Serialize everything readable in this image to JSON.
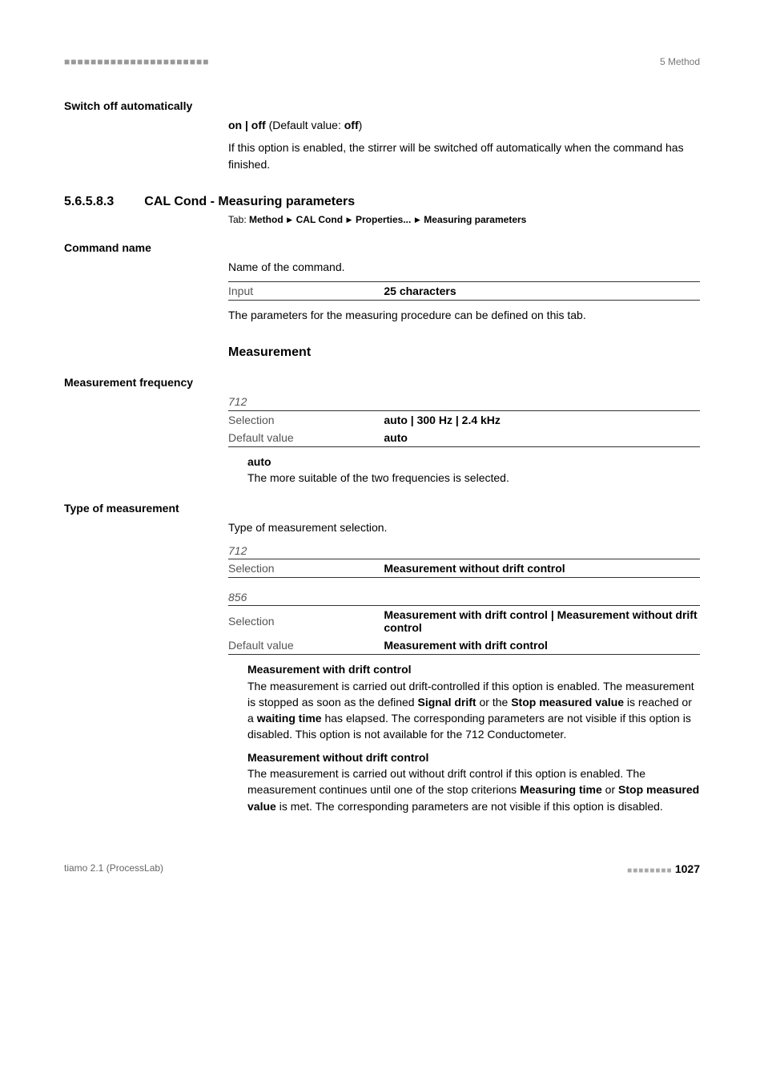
{
  "header": {
    "dashes": "■■■■■■■■■■■■■■■■■■■■■■",
    "chapter": "5 Method"
  },
  "switchOff": {
    "heading": "Switch off automatically",
    "options": "on | off",
    "defaultLabel": " (Default value: ",
    "defaultVal": "off",
    "defaultClose": ")",
    "desc": "If this option is enabled, the stirrer will be switched off automatically when the command has finished."
  },
  "section": {
    "num": "5.6.5.8.3",
    "title": "CAL Cond - Measuring parameters",
    "tabPrefix": "Tab: ",
    "tabPath": [
      "Method",
      "CAL Cond",
      "Properties...",
      "Measuring parameters"
    ]
  },
  "commandName": {
    "heading": "Command name",
    "desc": "Name of the command.",
    "rows": [
      {
        "k": "Input",
        "v": "25 characters"
      }
    ],
    "after": "The parameters for the measuring procedure can be defined on this tab."
  },
  "measurement": {
    "heading": "Measurement"
  },
  "measFreq": {
    "heading": "Measurement frequency",
    "device": "712",
    "rows": [
      {
        "k": "Selection",
        "v": "auto | 300 Hz | 2.4 kHz"
      },
      {
        "k": "Default value",
        "v": "auto"
      }
    ],
    "optName": "auto",
    "optDesc": "The more suitable of the two frequencies is selected."
  },
  "typeMeas": {
    "heading": "Type of measurement",
    "desc": "Type of measurement selection.",
    "device1": "712",
    "rows1": [
      {
        "k": "Selection",
        "v": "Measurement without drift control"
      }
    ],
    "device2": "856",
    "rows2": [
      {
        "k": "Selection",
        "v": "Measurement with drift control | Measurement without drift control"
      },
      {
        "k": "Default value",
        "v": "Measurement with drift control"
      }
    ],
    "opt1": {
      "name": "Measurement with drift control",
      "p1a": "The measurement is carried out drift-controlled if this option is enabled. The measurement is stopped as soon as the defined ",
      "b1": "Signal drift",
      "p1b": " or the ",
      "b2": "Stop measured value",
      "p1c": " is reached or a ",
      "b3": "waiting time",
      "p1d": " has elapsed. The corresponding parameters are not visible if this option is disabled. This option is not available for the 712 Conductometer."
    },
    "opt2": {
      "name": "Measurement without drift control",
      "p1a": "The measurement is carried out without drift control if this option is enabled. The measurement continues until one of the stop criterions ",
      "b1": "Measuring time",
      "p1b": " or ",
      "b2": "Stop measured value",
      "p1c": " is met. The corresponding parameters are not visible if this option is disabled."
    }
  },
  "footer": {
    "left": "tiamo 2.1 (ProcessLab)",
    "dashes": "■■■■■■■■",
    "page": "1027"
  }
}
